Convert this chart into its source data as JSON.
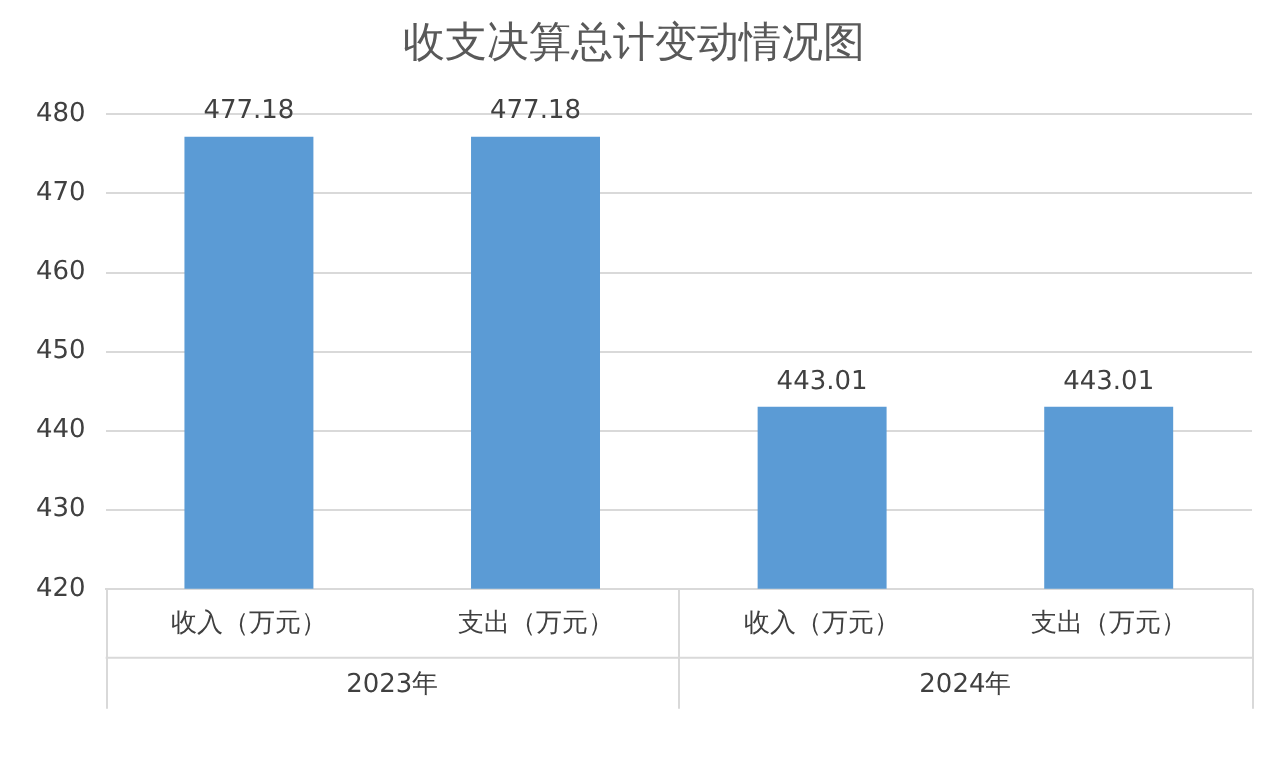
{
  "chart_data": {
    "type": "bar",
    "title": "收支决算总计变动情况图",
    "categories": [
      "收入（万元）",
      "支出（万元）",
      "收入（万元）",
      "支出（万元）"
    ],
    "values": [
      477.18,
      477.18,
      443.01,
      443.01
    ],
    "color": "#5b9bd5",
    "ylim": [
      420,
      480
    ],
    "yticks": [
      420,
      430,
      440,
      450,
      460,
      470,
      480
    ],
    "grid": "y",
    "data_labels": true,
    "legend": false,
    "annotations": [
      "2023年",
      "2024年"
    ]
  }
}
